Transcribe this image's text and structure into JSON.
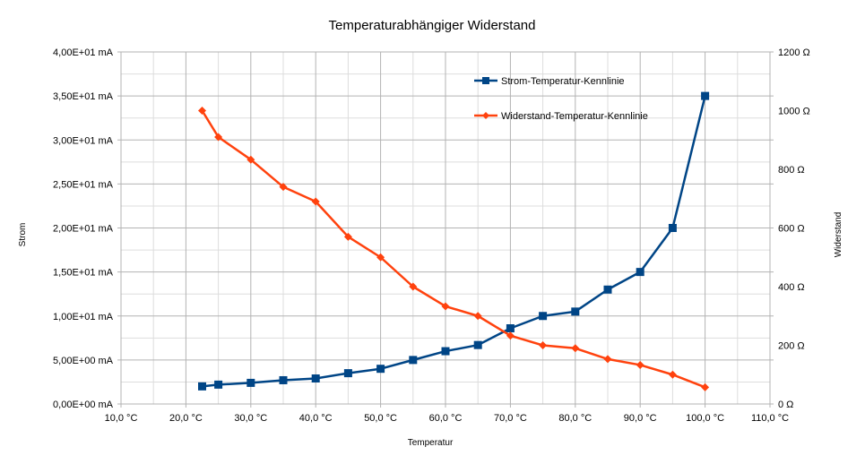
{
  "chart_data": {
    "type": "scatter",
    "title": "Temperaturabhängiger Widerstand",
    "xlabel": "Temperatur",
    "ylabel": "Strom",
    "y2label": "Widerstand",
    "xlim": [
      10,
      110
    ],
    "ylim": [
      0,
      40
    ],
    "y2lim": [
      0,
      1200
    ],
    "grid": true,
    "legend": "top-right",
    "x_ticks": [
      "10,0 °C",
      "20,0 °C",
      "30,0 °C",
      "40,0 °C",
      "50,0 °C",
      "60,0 °C",
      "70,0 °C",
      "80,0 °C",
      "90,0 °C",
      "100,0 °C",
      "110,0 °C"
    ],
    "y_ticks": [
      "0,00E+00 mA",
      "5,00E+00 mA",
      "1,00E+01 mA",
      "1,50E+01 mA",
      "2,00E+01 mA",
      "2,50E+01 mA",
      "3,00E+01 mA",
      "3,50E+01 mA",
      "4,00E+01 mA"
    ],
    "y2_ticks": [
      "0 Ω",
      "200 Ω",
      "400 Ω",
      "600 Ω",
      "800 Ω",
      "1000 Ω",
      "1200 Ω"
    ],
    "series": [
      {
        "name": "Strom-Temperatur-Kennlinie",
        "axis": "left",
        "color": "#004586",
        "marker": "square",
        "x": [
          22.5,
          25,
          30,
          35,
          40,
          45,
          50,
          55,
          60,
          65,
          70,
          75,
          80,
          85,
          90,
          95,
          100
        ],
        "y": [
          2.0,
          2.2,
          2.4,
          2.7,
          2.9,
          3.5,
          4.0,
          5.0,
          6.0,
          6.7,
          8.6,
          10.0,
          10.5,
          13.0,
          15.0,
          20.0,
          35.0
        ]
      },
      {
        "name": "Widerstand-Temperatur-Kennlinie",
        "axis": "right",
        "color": "#ff420e",
        "marker": "diamond",
        "x": [
          22.5,
          25,
          30,
          35,
          40,
          45,
          50,
          55,
          60,
          65,
          70,
          75,
          80,
          85,
          90,
          95,
          100
        ],
        "y": [
          1000,
          910,
          833,
          740,
          690,
          570,
          500,
          400,
          333,
          300,
          233,
          200,
          190,
          153,
          133,
          100,
          57
        ]
      }
    ]
  }
}
